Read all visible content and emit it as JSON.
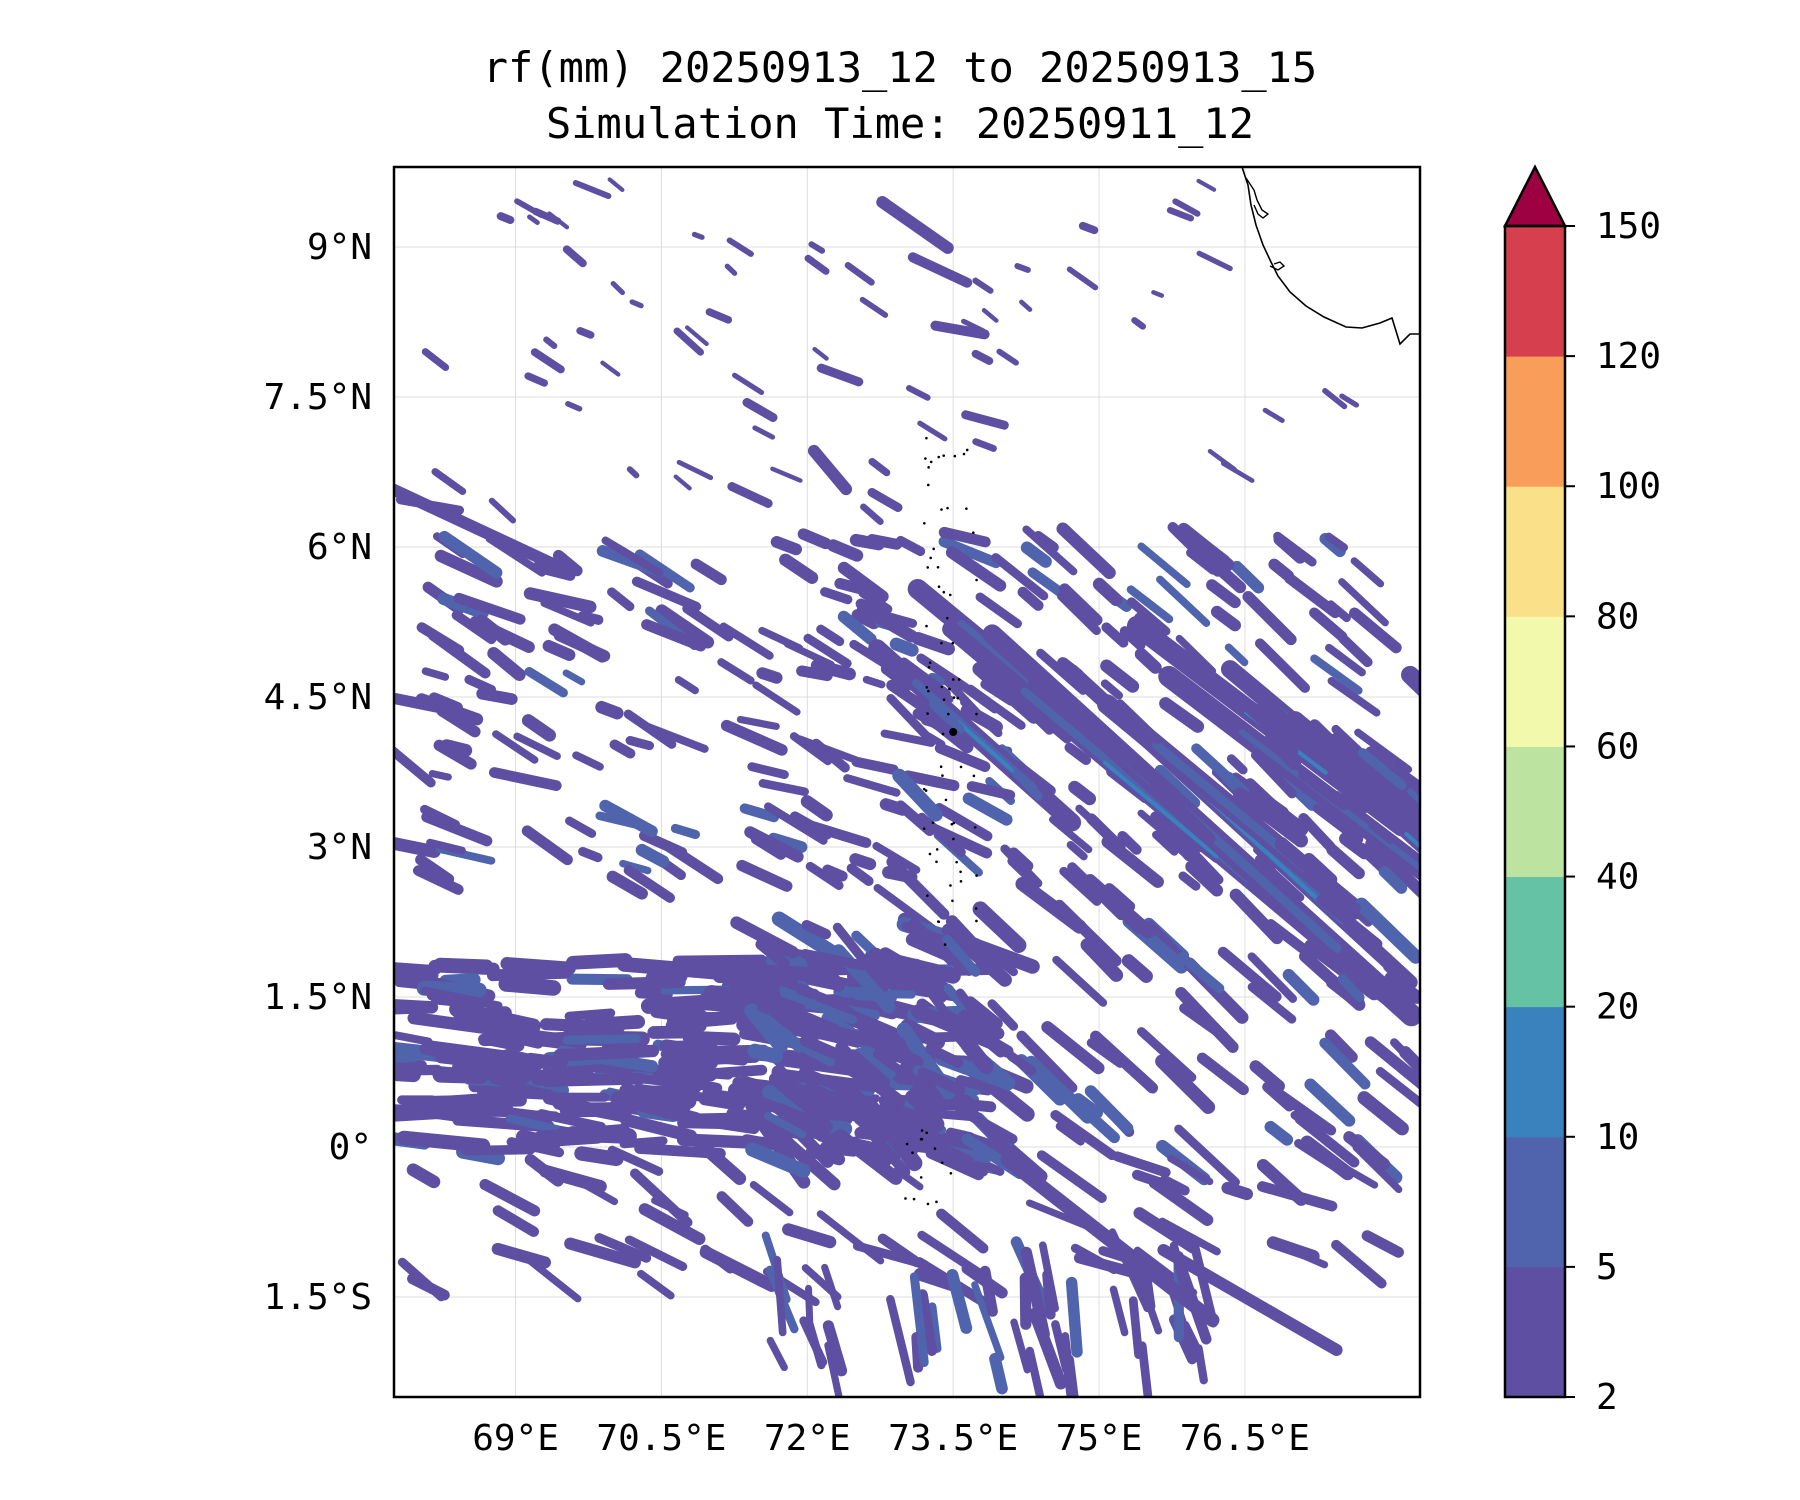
{
  "title": {
    "line1": "rf(mm) 20250913_12 to 20250913_15",
    "line2": "Simulation Time: 20250911_12"
  },
  "map": {
    "lon_range": [
      67.75,
      78.3
    ],
    "lat_range": [
      -2.5,
      9.8
    ],
    "x_ticks": [
      {
        "value": 69,
        "label": "69°E"
      },
      {
        "value": 70.5,
        "label": "70.5°E"
      },
      {
        "value": 72,
        "label": "72°E"
      },
      {
        "value": 73.5,
        "label": "73.5°E"
      },
      {
        "value": 75,
        "label": "75°E"
      },
      {
        "value": 76.5,
        "label": "76.5°E"
      }
    ],
    "y_ticks": [
      {
        "value": 9,
        "label": "9°N"
      },
      {
        "value": 7.5,
        "label": "7.5°N"
      },
      {
        "value": 6,
        "label": "6°N"
      },
      {
        "value": 4.5,
        "label": "4.5°N"
      },
      {
        "value": 3,
        "label": "3°N"
      },
      {
        "value": 1.5,
        "label": "1.5°N"
      },
      {
        "value": 0,
        "label": "0°"
      },
      {
        "value": -1.5,
        "label": "1.5°S"
      }
    ],
    "gridlines": true
  },
  "colorbar": {
    "levels": [
      "2",
      "5",
      "10",
      "20",
      "40",
      "60",
      "80",
      "100",
      "120",
      "150"
    ],
    "colors": [
      "#5e4fa2",
      "#4f64ad",
      "#3a82bd",
      "#66c2a5",
      "#bde3a0",
      "#f2f9ac",
      "#fbe08a",
      "#f99e5a",
      "#d6404e"
    ],
    "extend_color": "#9e0142",
    "extend": "max"
  },
  "rain_colors": {
    "light": "#5e4fa2",
    "mid": "#4f64ad",
    "heavy": "#3a82bd"
  }
}
